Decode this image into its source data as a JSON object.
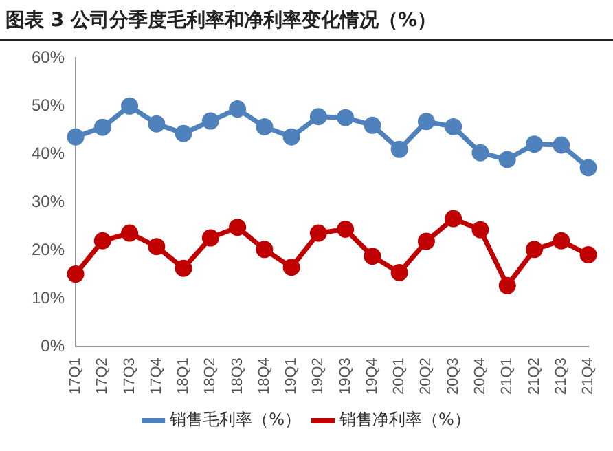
{
  "chart_data": {
    "type": "line",
    "title": "图表 3 公司分季度毛利率和净利率变化情况（%）",
    "categories": [
      "17Q1",
      "17Q2",
      "17Q3",
      "17Q4",
      "18Q1",
      "18Q2",
      "18Q3",
      "18Q4",
      "19Q1",
      "19Q2",
      "19Q3",
      "19Q4",
      "20Q1",
      "20Q2",
      "20Q3",
      "20Q4",
      "21Q1",
      "21Q2",
      "21Q3",
      "21Q4"
    ],
    "series": [
      {
        "name": "销售毛利率（%）",
        "color": "#4f81bd",
        "values": [
          43.6,
          45.6,
          50,
          46.3,
          44.3,
          46.9,
          49.4,
          45.7,
          43.6,
          47.8,
          47.6,
          46,
          41,
          46.8,
          45.7,
          40.3,
          38.9,
          42.1,
          41.9,
          37.2
        ]
      },
      {
        "name": "销售净利率（%）",
        "color": "#c00000",
        "values": [
          15.1,
          22,
          23.6,
          20.8,
          16.3,
          22.6,
          24.8,
          20.2,
          16.5,
          23.6,
          24.4,
          18.8,
          15.4,
          21.9,
          26.6,
          24.3,
          12.7,
          20.2,
          22,
          19.1
        ]
      }
    ],
    "ylim": [
      0,
      60
    ],
    "yticks": [
      {
        "value": 0,
        "label": "0%"
      },
      {
        "value": 10,
        "label": "10%"
      },
      {
        "value": 20,
        "label": "20%"
      },
      {
        "value": 30,
        "label": "30%"
      },
      {
        "value": 40,
        "label": "40%"
      },
      {
        "value": 50,
        "label": "50%"
      },
      {
        "value": 60,
        "label": "60%"
      }
    ],
    "grid": false,
    "legend": "bottom",
    "marker": "circle",
    "line_style": "solid"
  }
}
